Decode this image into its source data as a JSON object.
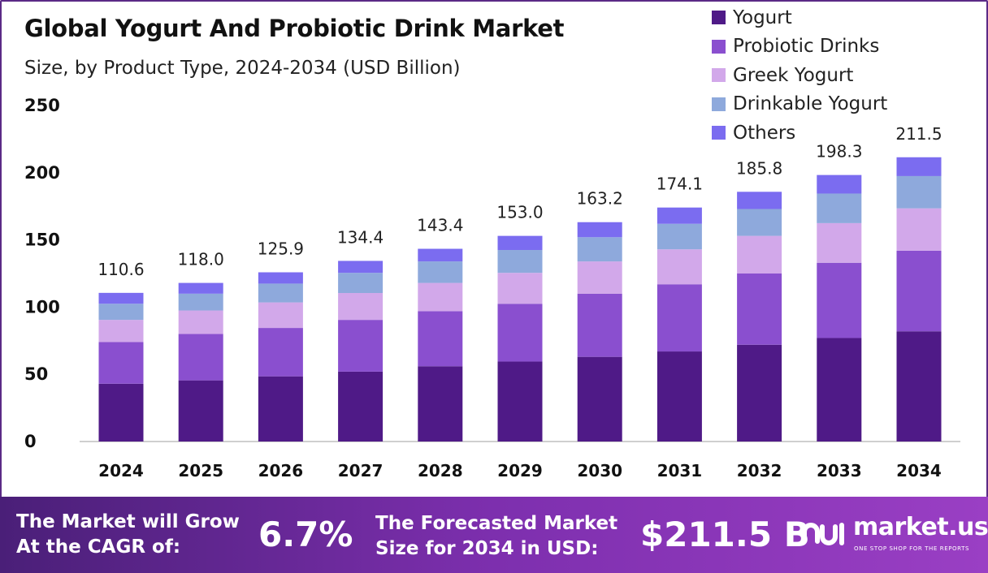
{
  "header": {
    "title": "Global Yogurt And Probiotic Drink Market",
    "subtitle": "Size, by Product Type, 2024-2034 (USD Billion)"
  },
  "chart_data": {
    "type": "bar",
    "stacked": true,
    "categories": [
      "2024",
      "2025",
      "2026",
      "2027",
      "2028",
      "2029",
      "2030",
      "2031",
      "2032",
      "2033",
      "2034"
    ],
    "series": [
      {
        "name": "Yogurt",
        "color": "#4f1a87",
        "values": [
          43.0,
          45.5,
          48.5,
          52.0,
          56.0,
          59.5,
          63.0,
          67.0,
          72.0,
          77.0,
          82.0
        ]
      },
      {
        "name": "Probiotic Drinks",
        "color": "#8a4fcf",
        "values": [
          31.0,
          34.5,
          36.0,
          38.5,
          41.0,
          43.0,
          47.0,
          50.0,
          53.0,
          56.0,
          60.0
        ]
      },
      {
        "name": "Greek Yogurt",
        "color": "#d2a8ea",
        "values": [
          16.5,
          17.5,
          19.0,
          20.0,
          21.0,
          23.0,
          24.0,
          26.0,
          28.0,
          29.5,
          31.5
        ]
      },
      {
        "name": "Drinkable Yogurt",
        "color": "#8ea9dc",
        "values": [
          12.0,
          12.5,
          14.0,
          15.0,
          16.0,
          17.0,
          18.0,
          19.0,
          20.0,
          22.0,
          24.0
        ]
      },
      {
        "name": "Others",
        "color": "#7b6cf0",
        "values": [
          8.1,
          8.0,
          8.4,
          8.9,
          9.4,
          10.5,
          11.2,
          12.1,
          12.8,
          13.8,
          14.0
        ]
      }
    ],
    "totals": [
      "110.6",
      "118.0",
      "125.9",
      "134.4",
      "143.4",
      "153.0",
      "163.2",
      "174.1",
      "185.8",
      "198.3",
      "211.5"
    ],
    "y_ticks": [
      "0",
      "50",
      "100",
      "150",
      "200",
      "250"
    ],
    "ylim": [
      0,
      250
    ],
    "grid": false,
    "legend_position": "top-right"
  },
  "footer": {
    "cagr_label_line1": "The Market will Grow",
    "cagr_label_line2": "At the CAGR of:",
    "cagr_value": "6.7%",
    "forecast_label_line1": "The Forecasted Market",
    "forecast_label_line2": "Size for 2034 in USD:",
    "forecast_value": "$211.5 B",
    "logo_text": "market.us",
    "logo_tagline": "ONE STOP SHOP FOR THE REPORTS"
  }
}
